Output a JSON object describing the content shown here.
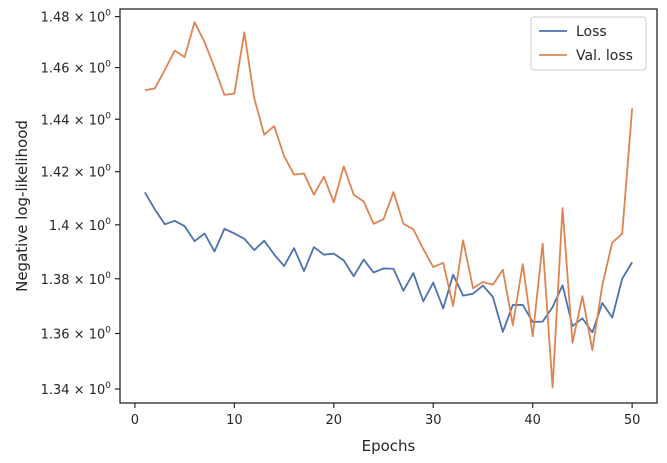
{
  "chart_data": {
    "type": "line",
    "xlabel": "Epochs",
    "ylabel": "Negative log-likelihood",
    "xlim": [
      -1.5,
      52.5
    ],
    "ylim": [
      1.335,
      1.483
    ],
    "yscale": "log",
    "grid": false,
    "legend_position": "top-right",
    "x_ticks": [
      0,
      10,
      20,
      30,
      40,
      50
    ],
    "x_tick_labels": [
      "0",
      "10",
      "20",
      "30",
      "40",
      "50"
    ],
    "y_ticks": [
      1.34,
      1.36,
      1.38,
      1.4,
      1.42,
      1.44,
      1.46,
      1.48
    ],
    "y_tick_labels": [
      {
        "mantissa": "1.34",
        "exp": "0"
      },
      {
        "mantissa": "1.36",
        "exp": "0"
      },
      {
        "mantissa": "1.38",
        "exp": "0"
      },
      {
        "mantissa": "1.4",
        "exp": "0"
      },
      {
        "mantissa": "1.42",
        "exp": "0"
      },
      {
        "mantissa": "1.44",
        "exp": "0"
      },
      {
        "mantissa": "1.46",
        "exp": "0"
      },
      {
        "mantissa": "1.48",
        "exp": "0"
      }
    ],
    "x": [
      1,
      2,
      3,
      4,
      5,
      6,
      7,
      8,
      9,
      10,
      11,
      12,
      13,
      14,
      15,
      16,
      17,
      18,
      19,
      20,
      21,
      22,
      23,
      24,
      25,
      26,
      27,
      28,
      29,
      30,
      31,
      32,
      33,
      34,
      35,
      36,
      37,
      38,
      39,
      40,
      41,
      42,
      43,
      44,
      45,
      46,
      47,
      48,
      49,
      50
    ],
    "series": [
      {
        "name": "Loss",
        "color": "#4c72b0",
        "values": [
          1.4122,
          1.4058,
          1.4002,
          1.4015,
          1.3995,
          1.3939,
          1.3968,
          1.3901,
          1.3985,
          1.3968,
          1.3948,
          1.3906,
          1.3941,
          1.389,
          1.3847,
          1.3913,
          1.3828,
          1.3917,
          1.3889,
          1.3893,
          1.3868,
          1.3809,
          1.3871,
          1.3823,
          1.3838,
          1.3837,
          1.3756,
          1.3821,
          1.3717,
          1.3786,
          1.3691,
          1.3815,
          1.3738,
          1.3745,
          1.3775,
          1.3733,
          1.3606,
          1.3704,
          1.3704,
          1.3642,
          1.3643,
          1.3696,
          1.3776,
          1.3627,
          1.3655,
          1.3604,
          1.3711,
          1.3658,
          1.38,
          1.3861
        ]
      },
      {
        "name": "Val. loss",
        "color": "#dd8452",
        "values": [
          1.4512,
          1.4519,
          1.459,
          1.4666,
          1.4641,
          1.4778,
          1.47,
          1.46,
          1.4494,
          1.4499,
          1.4738,
          1.4481,
          1.4341,
          1.4374,
          1.4259,
          1.4189,
          1.4193,
          1.4113,
          1.4181,
          1.4084,
          1.422,
          1.4113,
          1.4088,
          1.4004,
          1.4021,
          1.4123,
          1.4004,
          1.3983,
          1.391,
          1.3843,
          1.3859,
          1.37,
          1.3942,
          1.3765,
          1.3788,
          1.3778,
          1.3833,
          1.363,
          1.3854,
          1.359,
          1.393,
          1.3406,
          1.4063,
          1.3566,
          1.3736,
          1.354,
          1.3776,
          1.3934,
          1.3967,
          1.4442
        ]
      }
    ]
  }
}
